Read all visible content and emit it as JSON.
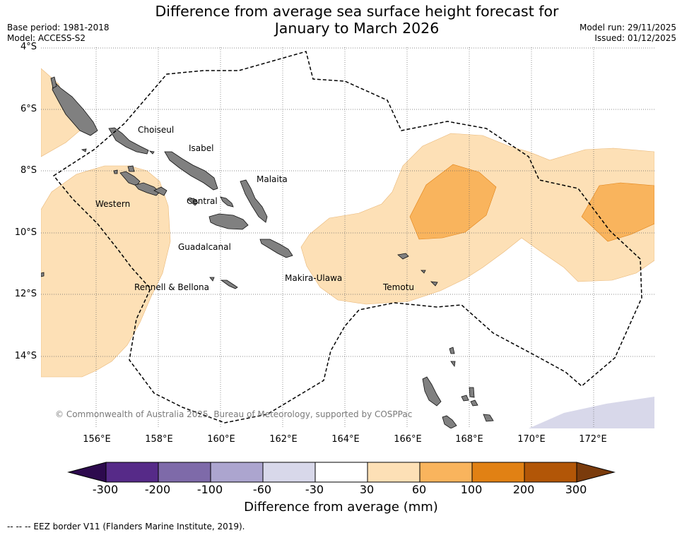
{
  "title": {
    "line1": "Difference from average sea surface height forecast for",
    "line2": "January to March 2026"
  },
  "meta": {
    "base_period": "Base period: 1981-2018",
    "model": "Model: ACCESS-S2",
    "model_run": "Model run: 29/11/2025",
    "issued": "Issued: 01/12/2025"
  },
  "map": {
    "lat_labels": [
      "4°S",
      "6°S",
      "8°S",
      "10°S",
      "12°S",
      "14°S"
    ],
    "lon_labels": [
      "156°E",
      "158°E",
      "160°E",
      "162°E",
      "164°E",
      "166°E",
      "168°E",
      "170°E",
      "172°E"
    ],
    "provinces": [
      "Choiseul",
      "Isabel",
      "Malaita",
      "Western",
      "Central",
      "Guadalcanal",
      "Makira-Ulawa",
      "Rennell & Bellona",
      "Temotu"
    ],
    "copyright": "© Commonwealth of Australia 2025, Bureau of Meteorology, supported by COSPPac",
    "colors": {
      "land": "#808080",
      "ocean": "#ffffff",
      "anomaly_30_60": "#fde0b6",
      "anomaly_60_100": "#f9b45d",
      "anomaly_neg_30_60": "#d8d8ea",
      "eez_border": "#000000"
    }
  },
  "colorbar": {
    "ticks": [
      "-300",
      "-200",
      "-100",
      "-60",
      "-30",
      "30",
      "60",
      "100",
      "200",
      "300"
    ],
    "colors": [
      "#562a88",
      "#7e6aa9",
      "#aca5cf",
      "#d8d8ea",
      "#ffffff",
      "#fde0b6",
      "#f9b45d",
      "#e18114",
      "#b25607"
    ],
    "extend_low_color": "#2d0a4e",
    "extend_high_color": "#7a3b0c",
    "label": "Difference from average (mm)"
  },
  "footnote": "--  --  -- EEZ border V11 (Flanders Marine Institute, 2019)."
}
